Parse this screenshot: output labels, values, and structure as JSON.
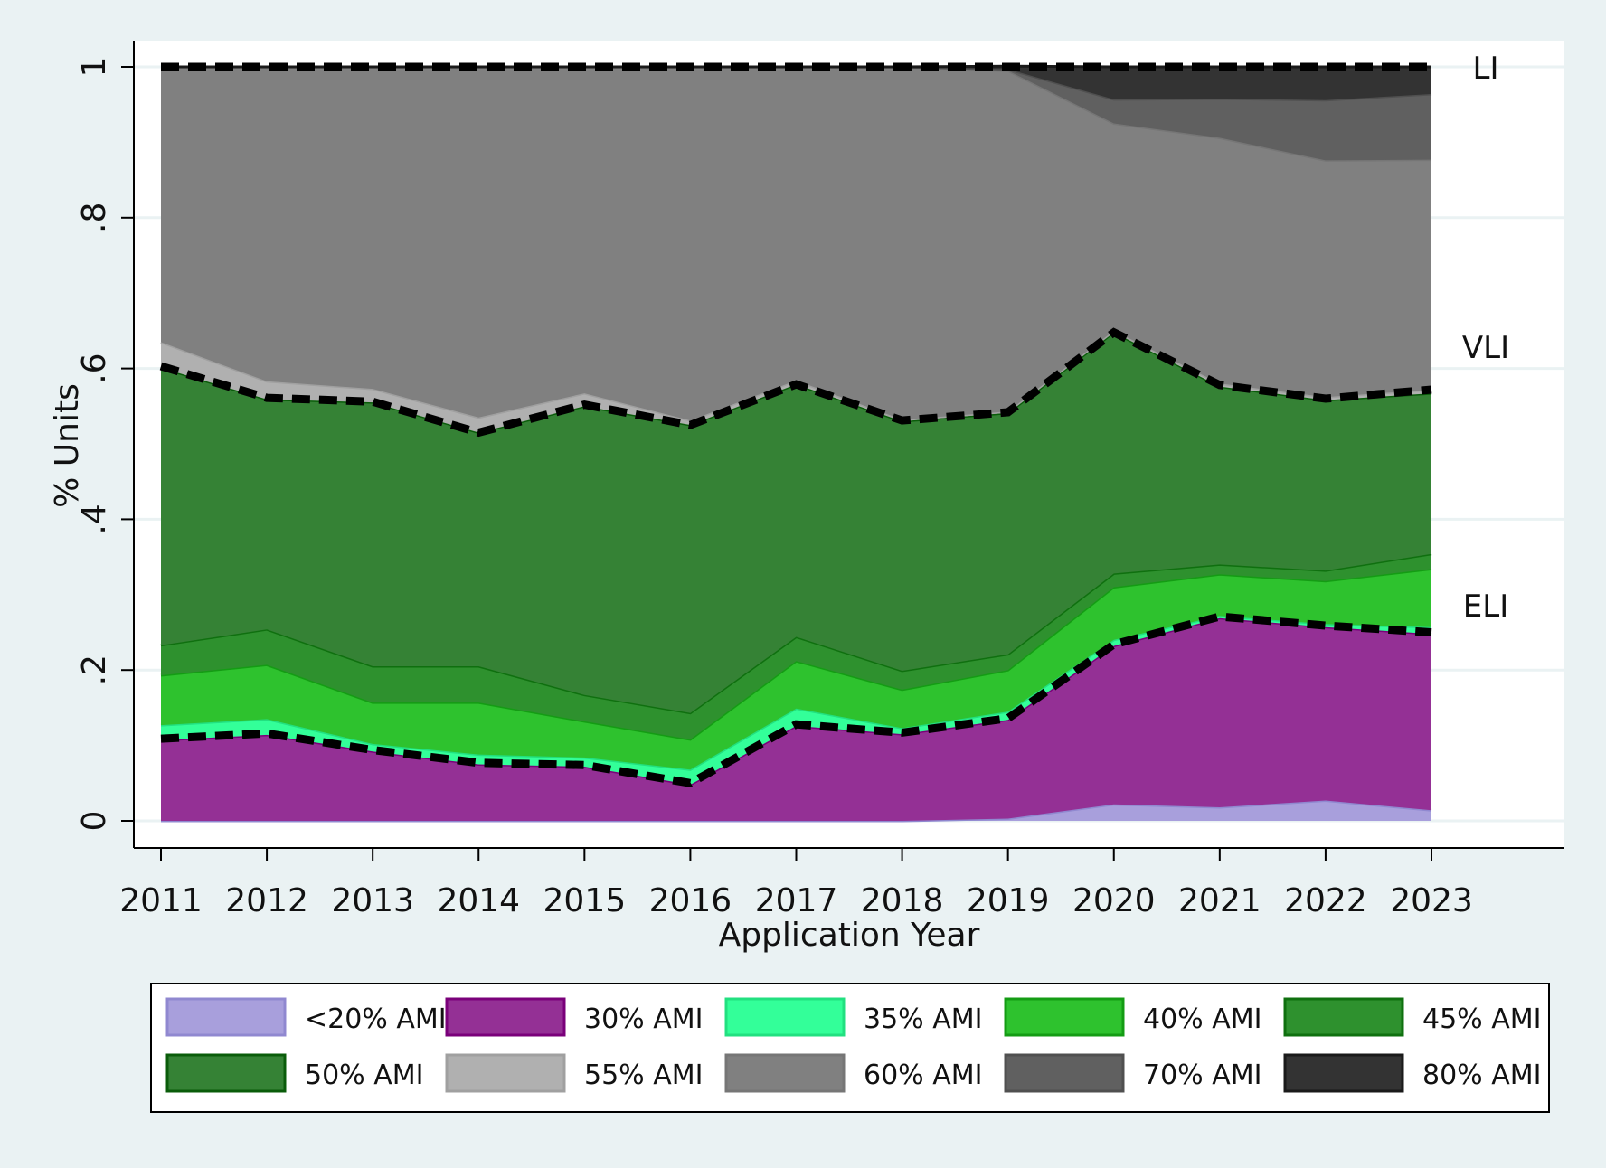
{
  "chart_data": {
    "type": "area",
    "stacked": true,
    "title": "",
    "xlabel": "Application Year",
    "ylabel": "% Units",
    "ylim": [
      0,
      1
    ],
    "yticks": [
      0,
      0.2,
      0.4,
      0.6,
      0.8,
      1
    ],
    "ytick_labels": [
      "0",
      ".2",
      ".4",
      ".6",
      ".8",
      "1"
    ],
    "x": [
      2011,
      2012,
      2013,
      2014,
      2015,
      2016,
      2017,
      2018,
      2019,
      2020,
      2021,
      2022,
      2023
    ],
    "xtick_labels": [
      "2011",
      "2012",
      "2013",
      "2014",
      "2015",
      "2016",
      "2017",
      "2018",
      "2019",
      "2020",
      "2021",
      "2022",
      "2023"
    ],
    "series": [
      {
        "name": "<20% AMI",
        "color": "#a89fdc",
        "values": [
          0,
          0,
          0,
          0,
          0,
          0,
          0,
          0,
          0.003,
          0.022,
          0.018,
          0.027,
          0.014
        ]
      },
      {
        "name": "30% AMI",
        "color": "#943095",
        "values": [
          0.107,
          0.114,
          0.092,
          0.075,
          0.072,
          0.048,
          0.126,
          0.115,
          0.131,
          0.21,
          0.251,
          0.23,
          0.234
        ]
      },
      {
        "name": "35% AMI",
        "color": "#33ff99",
        "values": [
          0.02,
          0.021,
          0.01,
          0.013,
          0.012,
          0.02,
          0.023,
          0.008,
          0.011,
          0.008,
          0.003,
          0.004,
          0.009
        ]
      },
      {
        "name": "40% AMI",
        "color": "#2ec22e",
        "values": [
          0.066,
          0.072,
          0.055,
          0.069,
          0.048,
          0.04,
          0.063,
          0.051,
          0.055,
          0.07,
          0.055,
          0.057,
          0.077
        ]
      },
      {
        "name": "45% AMI",
        "color": "#2e912e",
        "values": [
          0.04,
          0.047,
          0.048,
          0.048,
          0.035,
          0.035,
          0.032,
          0.025,
          0.021,
          0.018,
          0.013,
          0.014,
          0.02
        ]
      },
      {
        "name": "50% AMI",
        "color": "#358235",
        "values": [
          0.368,
          0.305,
          0.35,
          0.31,
          0.383,
          0.382,
          0.335,
          0.331,
          0.32,
          0.32,
          0.236,
          0.226,
          0.213
        ]
      },
      {
        "name": "55% AMI",
        "color": "#b0b0b0",
        "values": [
          0.034,
          0.024,
          0.018,
          0.02,
          0.017,
          0.006,
          0.005,
          0.002,
          0.002,
          0.002,
          0.004,
          0.004,
          0.005
        ]
      },
      {
        "name": "60% AMI",
        "color": "#808080",
        "values": [
          0.365,
          0.417,
          0.427,
          0.465,
          0.433,
          0.469,
          0.416,
          0.468,
          0.452,
          0.275,
          0.326,
          0.314,
          0.305
        ]
      },
      {
        "name": "70% AMI",
        "color": "#606060",
        "values": [
          0,
          0,
          0,
          0,
          0,
          0,
          0,
          0,
          0.002,
          0.032,
          0.052,
          0.08,
          0.087
        ]
      },
      {
        "name": "80% AMI",
        "color": "#333333",
        "values": [
          0,
          0,
          0,
          0,
          0,
          0,
          0,
          0,
          0.004,
          0.043,
          0.042,
          0.044,
          0.036
        ]
      }
    ],
    "threshold_lines": [
      {
        "name": "LI",
        "label": "LI",
        "style": "dashed",
        "values": [
          1,
          1,
          1,
          1,
          1,
          1,
          1,
          1,
          1,
          1,
          1,
          1,
          1
        ]
      },
      {
        "name": "VLI",
        "label": "VLI",
        "style": "dashed",
        "values": [
          0.603,
          0.561,
          0.556,
          0.515,
          0.552,
          0.525,
          0.579,
          0.531,
          0.542,
          0.648,
          0.578,
          0.56,
          0.572
        ]
      },
      {
        "name": "ELI",
        "label": "ELI",
        "style": "dashed",
        "values": [
          0.109,
          0.116,
          0.094,
          0.077,
          0.074,
          0.05,
          0.128,
          0.117,
          0.136,
          0.234,
          0.271,
          0.259,
          0.25
        ]
      }
    ],
    "grid": true,
    "legend": {
      "position": "bottom",
      "columns": 5,
      "entries": [
        "<20% AMI",
        "30% AMI",
        "35% AMI",
        "40% AMI",
        "45% AMI",
        "50% AMI",
        "55% AMI",
        "60% AMI",
        "70% AMI",
        "80% AMI"
      ]
    }
  },
  "colors": {
    "background": "#eaf2f3",
    "plot_background": "#ffffff",
    "gridline": "#eaf2f3",
    "axis": "#000000",
    "threshold_line": "#000000",
    "series_edges": [
      "#9088d0",
      "#7a007a",
      "#22e080",
      "#149c14",
      "#0f700f",
      "#0a5c0a",
      "#a0a0a0",
      "#767676",
      "#505050",
      "#1a1a1a"
    ]
  }
}
